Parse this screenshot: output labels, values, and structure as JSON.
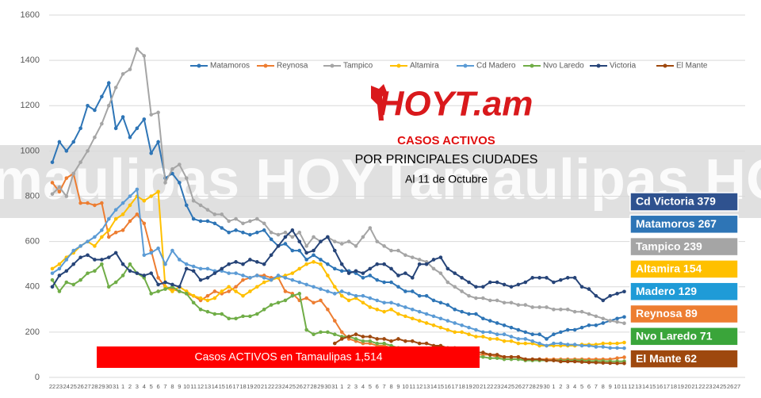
{
  "chart_data": {
    "type": "line",
    "logo": "HOYT.am",
    "watermark": "maulipas HOYTamaulipas HOYTama",
    "title": "CASOS ACTIVOS",
    "subtitle": "POR PRINCIPALES CIUDADES",
    "date_note": "Al 11 de Octubre",
    "banner": "Casos ACTIVOS en Tamaulipas  1,514",
    "callouts": [
      {
        "label": "Cd Victoria 379",
        "color": "#2f528f"
      },
      {
        "label": "Matamoros 267",
        "color": "#2e75b6"
      },
      {
        "label": "Tampico 239",
        "color": "#a5a5a5"
      },
      {
        "label": "Altamira 154",
        "color": "#ffc000"
      },
      {
        "label": "Madero 129",
        "color": "#1f9bd7"
      },
      {
        "label": "Reynosa 89",
        "color": "#ed7d31"
      },
      {
        "label": "Nvo Laredo 71",
        "color": "#3aa53a"
      },
      {
        "label": "El Mante 62",
        "color": "#9e480e"
      }
    ],
    "categories": [
      "22",
      "23",
      "24",
      "25",
      "26",
      "27",
      "28",
      "29",
      "30",
      "31",
      "1",
      "2",
      "3",
      "4",
      "5",
      "6",
      "7",
      "8",
      "9",
      "10",
      "11",
      "12",
      "13",
      "14",
      "15",
      "16",
      "17",
      "18",
      "19",
      "20",
      "21",
      "22",
      "23",
      "24",
      "25",
      "26",
      "27",
      "28",
      "29",
      "30",
      "31",
      "1",
      "2",
      "3",
      "4",
      "5",
      "6",
      "7",
      "8",
      "9",
      "10",
      "11",
      "12",
      "13",
      "14",
      "15",
      "16",
      "17",
      "18",
      "19",
      "20",
      "21",
      "22",
      "23",
      "24",
      "25",
      "26",
      "27",
      "28",
      "29",
      "30",
      "1",
      "2",
      "3",
      "4",
      "5",
      "6",
      "7",
      "8",
      "9",
      "10",
      "11",
      "12",
      "13",
      "14",
      "15",
      "16",
      "17",
      "18",
      "19",
      "20",
      "21",
      "22",
      "23",
      "24",
      "25",
      "26",
      "27"
    ],
    "ylim": [
      0,
      1600
    ],
    "yticks": [
      0,
      200,
      400,
      600,
      800,
      1000,
      1200,
      1400,
      1600
    ],
    "grid": true,
    "series": [
      {
        "name": "Matamoros",
        "color": "#2e75b6",
        "values": [
          950,
          1040,
          1000,
          1040,
          1100,
          1200,
          1180,
          1240,
          1300,
          1100,
          1150,
          1060,
          1100,
          1140,
          990,
          1040,
          880,
          900,
          860,
          760,
          700,
          690,
          690,
          680,
          660,
          640,
          650,
          640,
          630,
          640,
          650,
          610,
          580,
          590,
          560,
          560,
          520,
          540,
          520,
          500,
          480,
          470,
          470,
          460,
          440,
          450,
          430,
          420,
          420,
          400,
          380,
          380,
          360,
          360,
          340,
          330,
          320,
          300,
          290,
          280,
          280,
          260,
          250,
          240,
          230,
          220,
          210,
          200,
          190,
          190,
          170,
          190,
          200,
          210,
          210,
          220,
          230,
          230,
          240,
          250,
          260,
          267,
          null,
          null,
          null,
          null,
          null,
          null,
          null,
          null,
          null,
          null,
          null,
          null,
          null,
          null,
          null,
          null
        ]
      },
      {
        "name": "Reynosa",
        "color": "#ed7d31",
        "values": [
          860,
          820,
          880,
          900,
          770,
          770,
          760,
          770,
          620,
          640,
          650,
          690,
          720,
          680,
          560,
          440,
          400,
          390,
          380,
          370,
          360,
          340,
          360,
          380,
          370,
          380,
          400,
          430,
          440,
          450,
          450,
          440,
          440,
          380,
          370,
          340,
          350,
          330,
          340,
          300,
          250,
          200,
          170,
          160,
          150,
          150,
          140,
          140,
          130,
          130,
          120,
          120,
          120,
          110,
          110,
          110,
          100,
          100,
          100,
          100,
          100,
          100,
          100,
          90,
          90,
          90,
          90,
          80,
          80,
          80,
          80,
          80,
          80,
          80,
          80,
          80,
          80,
          80,
          80,
          80,
          85,
          89,
          null,
          null,
          null,
          null,
          null,
          null,
          null,
          null,
          null,
          null,
          null,
          null,
          null,
          null,
          null,
          null
        ]
      },
      {
        "name": "Tampico",
        "color": "#a5a5a5",
        "values": [
          810,
          840,
          800,
          900,
          950,
          1000,
          1060,
          1120,
          1200,
          1280,
          1340,
          1360,
          1450,
          1420,
          1160,
          1170,
          860,
          920,
          940,
          880,
          780,
          760,
          740,
          720,
          720,
          690,
          700,
          680,
          690,
          700,
          680,
          640,
          630,
          640,
          620,
          640,
          580,
          620,
          600,
          620,
          600,
          590,
          600,
          580,
          620,
          660,
          600,
          580,
          560,
          560,
          540,
          530,
          520,
          510,
          480,
          460,
          420,
          400,
          380,
          360,
          350,
          350,
          340,
          340,
          330,
          330,
          320,
          320,
          310,
          310,
          310,
          300,
          300,
          300,
          290,
          290,
          280,
          270,
          260,
          250,
          245,
          239,
          null,
          null,
          null,
          null,
          null,
          null,
          null,
          null,
          null,
          null,
          null,
          null,
          null,
          null,
          null,
          null
        ]
      },
      {
        "name": "Altamira",
        "color": "#ffc000",
        "values": [
          480,
          500,
          530,
          550,
          580,
          600,
          580,
          620,
          650,
          700,
          720,
          760,
          800,
          780,
          800,
          820,
          400,
          380,
          400,
          380,
          360,
          350,
          340,
          350,
          380,
          400,
          380,
          360,
          380,
          400,
          420,
          430,
          440,
          450,
          460,
          480,
          500,
          510,
          500,
          450,
          400,
          360,
          340,
          350,
          330,
          310,
          300,
          290,
          300,
          280,
          270,
          260,
          250,
          240,
          230,
          220,
          210,
          200,
          200,
          190,
          180,
          180,
          170,
          170,
          160,
          160,
          150,
          150,
          150,
          140,
          140,
          140,
          140,
          140,
          140,
          145,
          145,
          145,
          150,
          150,
          150,
          154,
          null,
          null,
          null,
          null,
          null,
          null,
          null,
          null,
          null,
          null,
          null,
          null,
          null,
          null,
          null,
          null
        ]
      },
      {
        "name": "Cd Madero",
        "color": "#5b9bd5",
        "values": [
          460,
          480,
          520,
          560,
          580,
          600,
          620,
          650,
          700,
          740,
          770,
          800,
          830,
          540,
          550,
          570,
          500,
          560,
          520,
          500,
          490,
          480,
          480,
          470,
          470,
          460,
          460,
          450,
          440,
          450,
          440,
          430,
          450,
          440,
          430,
          420,
          410,
          400,
          390,
          380,
          370,
          380,
          370,
          360,
          360,
          350,
          340,
          330,
          330,
          320,
          310,
          300,
          290,
          280,
          270,
          260,
          250,
          240,
          230,
          220,
          210,
          200,
          200,
          190,
          190,
          180,
          170,
          170,
          160,
          150,
          140,
          150,
          150,
          145,
          145,
          140,
          140,
          135,
          135,
          130,
          130,
          129,
          null,
          null,
          null,
          null,
          null,
          null,
          null,
          null,
          null,
          null,
          null,
          null,
          null,
          null,
          null,
          null
        ]
      },
      {
        "name": "Nvo Laredo",
        "color": "#70ad47",
        "values": [
          430,
          380,
          420,
          410,
          430,
          460,
          470,
          500,
          400,
          420,
          450,
          500,
          460,
          440,
          370,
          380,
          390,
          400,
          380,
          370,
          330,
          300,
          290,
          280,
          280,
          260,
          260,
          270,
          270,
          280,
          300,
          320,
          330,
          340,
          360,
          370,
          210,
          190,
          200,
          200,
          190,
          180,
          180,
          170,
          160,
          160,
          150,
          150,
          140,
          130,
          120,
          120,
          110,
          110,
          100,
          100,
          100,
          95,
          95,
          90,
          90,
          90,
          85,
          85,
          80,
          80,
          80,
          75,
          75,
          75,
          75,
          75,
          75,
          75,
          75,
          75,
          72,
          72,
          72,
          71,
          71,
          71,
          null,
          null,
          null,
          null,
          null,
          null,
          null,
          null,
          null,
          null,
          null,
          null,
          null,
          null,
          null,
          null
        ]
      },
      {
        "name": "Victoria",
        "color": "#264478",
        "values": [
          400,
          450,
          470,
          500,
          530,
          540,
          520,
          520,
          530,
          550,
          500,
          470,
          460,
          450,
          460,
          410,
          420,
          410,
          400,
          480,
          470,
          430,
          440,
          460,
          480,
          500,
          510,
          500,
          520,
          510,
          500,
          540,
          580,
          620,
          650,
          600,
          550,
          560,
          600,
          620,
          560,
          500,
          460,
          470,
          460,
          480,
          500,
          500,
          480,
          450,
          460,
          440,
          500,
          500,
          520,
          530,
          480,
          460,
          440,
          420,
          400,
          400,
          420,
          420,
          410,
          400,
          410,
          420,
          440,
          440,
          440,
          420,
          430,
          440,
          440,
          400,
          390,
          360,
          340,
          360,
          370,
          379,
          null,
          null,
          null,
          null,
          null,
          null,
          null,
          null,
          null,
          null,
          null,
          null,
          null,
          null,
          null,
          null
        ]
      },
      {
        "name": "El Mante",
        "color": "#9e480e",
        "values": [
          null,
          null,
          null,
          null,
          null,
          null,
          null,
          null,
          null,
          null,
          null,
          null,
          null,
          null,
          null,
          null,
          null,
          null,
          null,
          null,
          null,
          null,
          null,
          null,
          null,
          null,
          null,
          null,
          null,
          null,
          null,
          null,
          null,
          null,
          null,
          null,
          null,
          null,
          null,
          null,
          150,
          170,
          180,
          190,
          180,
          180,
          170,
          170,
          160,
          170,
          160,
          160,
          150,
          150,
          140,
          140,
          130,
          130,
          120,
          120,
          110,
          110,
          100,
          100,
          90,
          90,
          90,
          80,
          80,
          80,
          75,
          75,
          70,
          70,
          70,
          68,
          66,
          65,
          64,
          63,
          62,
          62,
          null,
          null,
          null,
          null,
          null,
          null,
          null,
          null,
          null,
          null,
          null,
          null,
          null,
          null,
          null,
          null
        ]
      }
    ]
  }
}
